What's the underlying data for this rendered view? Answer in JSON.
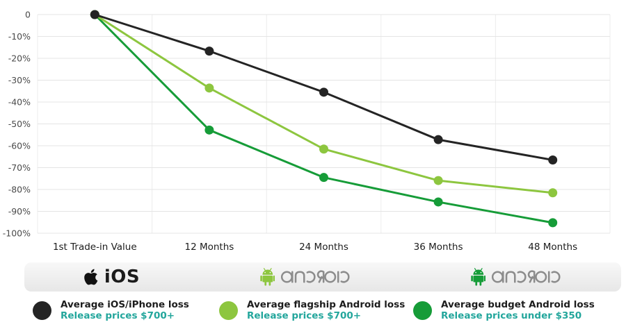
{
  "chart_data": {
    "type": "line",
    "title": "",
    "xlabel": "",
    "ylabel": "",
    "categories": [
      "1st Trade-in Value",
      "12 Months",
      "24 Months",
      "36 Months",
      "48 Months"
    ],
    "series": [
      {
        "name": "Average iOS/iPhone loss",
        "color": "#242424",
        "values": [
          0,
          -16.7,
          -35.5,
          -57.2,
          -66.5
        ]
      },
      {
        "name": "Average flagship Android loss",
        "color": "#8dc63f",
        "values": [
          0,
          -33.6,
          -61.5,
          -75.9,
          -81.5
        ]
      },
      {
        "name": "Average budget Android loss",
        "color": "#169c38",
        "values": [
          0,
          -52.8,
          -74.5,
          -85.7,
          -95.2
        ]
      }
    ],
    "ylim": [
      -100,
      0
    ],
    "ytick_step": 10,
    "ytick_labels": [
      "0",
      "-10%",
      "-20%",
      "-30%",
      "-40%",
      "-50%",
      "-60%",
      "-70%",
      "-80%",
      "-90%",
      "-100%"
    ],
    "grid": true,
    "gridline_color": "#e4e4e4",
    "legend_position": "bottom"
  },
  "platform_bar": {
    "wordmark_color": "#8c8c8c",
    "items": [
      {
        "label": "iOS",
        "icon": "apple-logo",
        "color": "#1b1b1b"
      },
      {
        "label": "android",
        "icon": "android-robot",
        "color": "#8dc63f"
      },
      {
        "label": "android",
        "icon": "android-robot",
        "color": "#169c38"
      }
    ]
  },
  "legend": {
    "subtitle_color": "#23a69c",
    "entries": [
      {
        "title": "Average iOS/iPhone loss",
        "subtitle": "Release prices $700+",
        "color": "#242424"
      },
      {
        "title": "Average flagship Android loss",
        "subtitle": "Release prices $700+",
        "color": "#8dc63f"
      },
      {
        "title": "Average budget Android loss",
        "subtitle": "Release prices under $350",
        "color": "#169c38"
      }
    ]
  }
}
